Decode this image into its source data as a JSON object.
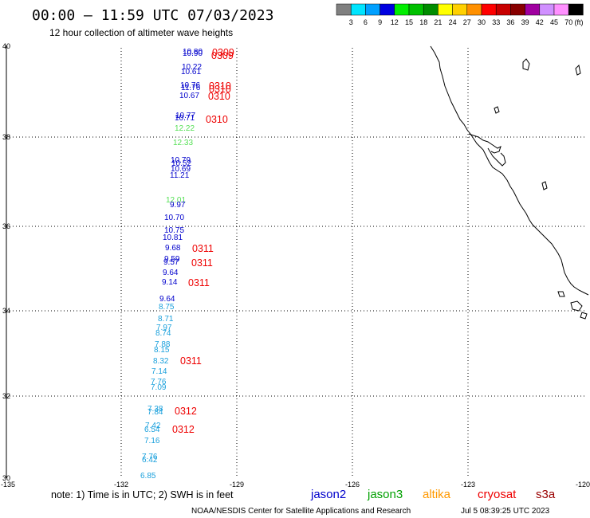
{
  "header": {
    "title": "00:00 – 11:59 UTC 07/03/2023",
    "subtitle": "12 hour collection of altimeter wave heights"
  },
  "colorbar": {
    "labels": [
      "3",
      "6",
      "9",
      "12",
      "15",
      "18",
      "21",
      "24",
      "27",
      "30",
      "33",
      "36",
      "39",
      "42",
      "45",
      "70"
    ],
    "unit": "(ft)",
    "colors": [
      "#808080",
      "#00e5ff",
      "#00a0ff",
      "#0000e0",
      "#00ee00",
      "#00c000",
      "#008c00",
      "#ffff00",
      "#ffd000",
      "#ff9000",
      "#ff0000",
      "#c80000",
      "#880000",
      "#a000a0",
      "#d090ff",
      "#ff90ff",
      "#000000"
    ]
  },
  "axes": {
    "lat_labels": [
      "40",
      "38",
      "36",
      "34",
      "32",
      "30"
    ],
    "lon_labels": [
      "-135",
      "-132",
      "-129",
      "-126",
      "-123",
      "-120"
    ]
  },
  "observations": [
    {
      "text": "10.80",
      "color": "#0000cc"
    },
    {
      "text": "10.90",
      "color": "#0000cc"
    },
    {
      "text": "10.22",
      "color": "#0000cc"
    },
    {
      "text": "10.61",
      "color": "#0000cc"
    },
    {
      "text": "10.76",
      "color": "#0000cc"
    },
    {
      "text": "11.76",
      "color": "#0000cc"
    },
    {
      "text": "10.67",
      "color": "#0000cc"
    },
    {
      "text": "10.77",
      "color": "#0000cc"
    },
    {
      "text": "10.71",
      "color": "#0000cc"
    },
    {
      "text": "12.22",
      "color": "#55e055"
    },
    {
      "text": "12.33",
      "color": "#55e055"
    },
    {
      "text": "10.79",
      "color": "#0000cc"
    },
    {
      "text": "10.52",
      "color": "#0000cc"
    },
    {
      "text": "10.69",
      "color": "#0000cc"
    },
    {
      "text": "11.21",
      "color": "#0000cc"
    },
    {
      "text": "12.01",
      "color": "#55e055"
    },
    {
      "text": "9.97",
      "color": "#0000cc"
    },
    {
      "text": "10.70",
      "color": "#0000cc"
    },
    {
      "text": "10.75",
      "color": "#0000cc"
    },
    {
      "text": "10.81",
      "color": "#0000cc"
    },
    {
      "text": "9.68",
      "color": "#0000cc"
    },
    {
      "text": "9.59",
      "color": "#0000cc"
    },
    {
      "text": "9.57",
      "color": "#0000cc"
    },
    {
      "text": "9.64",
      "color": "#0000cc"
    },
    {
      "text": "9.14",
      "color": "#0000cc"
    },
    {
      "text": "9.64",
      "color": "#0000cc"
    },
    {
      "text": "8.75",
      "color": "#1aa0dc"
    },
    {
      "text": "8.71",
      "color": "#1aa0dc"
    },
    {
      "text": "7.97",
      "color": "#1aa0dc"
    },
    {
      "text": "8.74",
      "color": "#1aa0dc"
    },
    {
      "text": "7.88",
      "color": "#1aa0dc"
    },
    {
      "text": "8.15",
      "color": "#1aa0dc"
    },
    {
      "text": "8.32",
      "color": "#1aa0dc"
    },
    {
      "text": "7.14",
      "color": "#1aa0dc"
    },
    {
      "text": "7.76",
      "color": "#1aa0dc"
    },
    {
      "text": "7.09",
      "color": "#1aa0dc"
    },
    {
      "text": "7.38",
      "color": "#1aa0dc"
    },
    {
      "text": "7.84",
      "color": "#1aa0dc"
    },
    {
      "text": "7.42",
      "color": "#1aa0dc"
    },
    {
      "text": "6.54",
      "color": "#1aa0dc"
    },
    {
      "text": "7.16",
      "color": "#1aa0dc"
    },
    {
      "text": "7.76",
      "color": "#1aa0dc"
    },
    {
      "text": "6.42",
      "color": "#1aa0dc"
    },
    {
      "text": "6.85",
      "color": "#1aa0dc"
    }
  ],
  "time_tags": [
    {
      "text": "0309",
      "color": "#ee0000"
    },
    {
      "text": "0309",
      "color": "#ee0000"
    },
    {
      "text": "0310",
      "color": "#ee0000"
    },
    {
      "text": "0310",
      "color": "#ee0000"
    },
    {
      "text": "0310",
      "color": "#ee0000"
    },
    {
      "text": "0310",
      "color": "#ee0000"
    },
    {
      "text": "0311",
      "color": "#ee0000"
    },
    {
      "text": "0311",
      "color": "#ee0000"
    },
    {
      "text": "0311",
      "color": "#ee0000"
    },
    {
      "text": "0311",
      "color": "#ee0000"
    },
    {
      "text": "0312",
      "color": "#ee0000"
    },
    {
      "text": "0312",
      "color": "#ee0000"
    }
  ],
  "footer": {
    "note": "note: 1) Time is in UTC; 2) SWH is in feet",
    "credit": "NOAA/NESDIS Center for Satellite Applications and Research",
    "timestamp": "Jul  5 08:39:25 UTC 2023"
  },
  "legend": [
    {
      "name": "jason2",
      "color": "#0000cc"
    },
    {
      "name": "jason3",
      "color": "#00a000"
    },
    {
      "name": "altika",
      "color": "#ff9900"
    },
    {
      "name": "cryosat",
      "color": "#ee0000"
    },
    {
      "name": "s3a",
      "color": "#990000"
    }
  ]
}
